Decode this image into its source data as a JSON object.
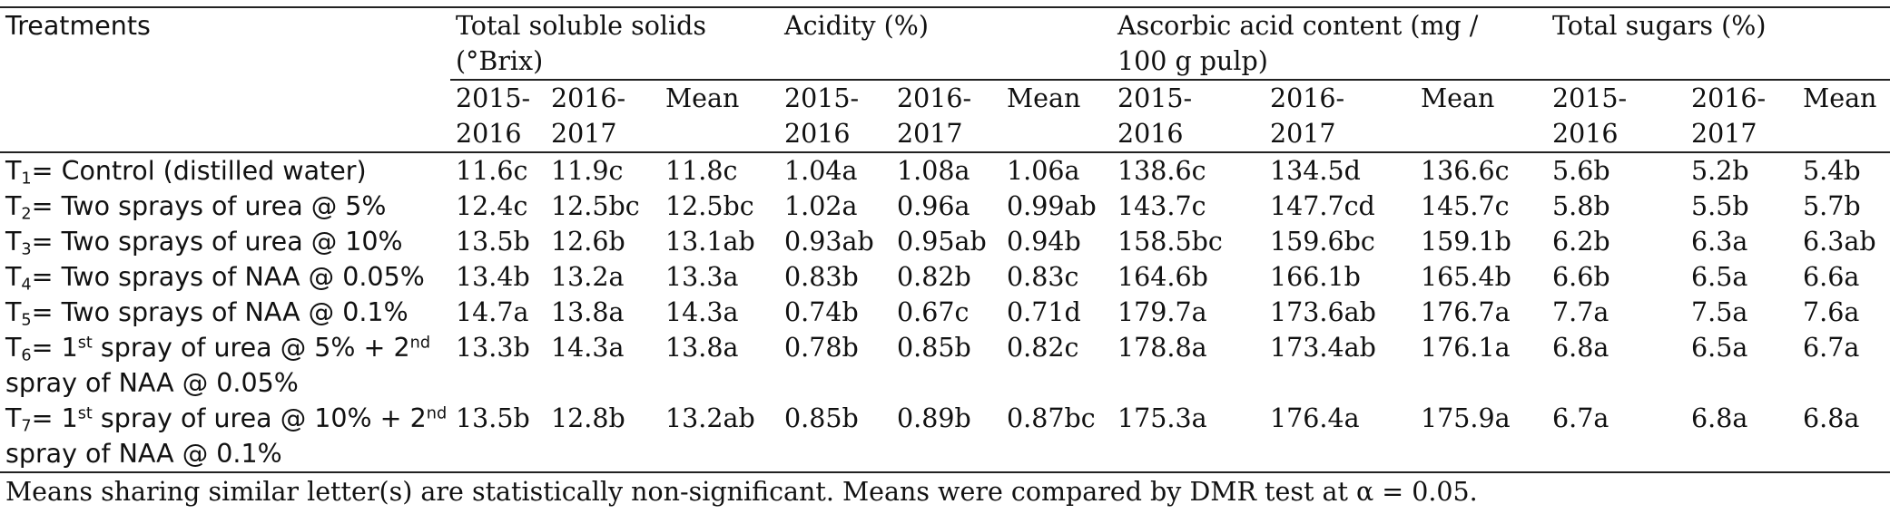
{
  "table": {
    "treatments_header": "Treatments",
    "groups": [
      {
        "label_line1": "Total soluble solids",
        "label_line2": "(°Brix)"
      },
      {
        "label_line1": "Acidity (%)",
        "label_line2": ""
      },
      {
        "label_line1": "Ascorbic acid content (mg /",
        "label_line2": "100 g pulp)"
      },
      {
        "label_line1": "Total sugars (%)",
        "label_line2": ""
      }
    ],
    "subheaders": [
      [
        "2015-",
        "2016"
      ],
      [
        "2016-",
        "2017"
      ],
      [
        "Mean",
        ""
      ],
      [
        "2015-",
        "2016"
      ],
      [
        "2016-",
        "2017"
      ],
      [
        "Mean",
        ""
      ],
      [
        "2015-",
        "2016"
      ],
      [
        "2016-",
        "2017"
      ],
      [
        "Mean",
        ""
      ],
      [
        "2015-",
        "2016"
      ],
      [
        "2016-",
        "2017"
      ],
      [
        "Mean",
        ""
      ]
    ],
    "rows": [
      {
        "t": "T",
        "sub": "1",
        "pre": "= Control (distilled water)",
        "sup1": "",
        "mid": "",
        "sup2": "",
        "post": "",
        "values": [
          "11.6c",
          "11.9c",
          "11.8c",
          "1.04a",
          "1.08a",
          "1.06a",
          "138.6c",
          "134.5d",
          "136.6c",
          "5.6b",
          "5.2b",
          "5.4b"
        ]
      },
      {
        "t": "T",
        "sub": "2",
        "pre": "= Two sprays of urea @ 5%",
        "sup1": "",
        "mid": "",
        "sup2": "",
        "post": "",
        "values": [
          "12.4c",
          "12.5bc",
          "12.5bc",
          "1.02a",
          "0.96a",
          "0.99ab",
          "143.7c",
          "147.7cd",
          "145.7c",
          "5.8b",
          "5.5b",
          "5.7b"
        ]
      },
      {
        "t": "T",
        "sub": "3",
        "pre": "= Two sprays of urea @ 10%",
        "sup1": "",
        "mid": "",
        "sup2": "",
        "post": "",
        "values": [
          "13.5b",
          "12.6b",
          "13.1ab",
          "0.93ab",
          "0.95ab",
          "0.94b",
          "158.5bc",
          "159.6bc",
          "159.1b",
          "6.2b",
          "6.3a",
          "6.3ab"
        ]
      },
      {
        "t": "T",
        "sub": "4",
        "pre": "= Two sprays of NAA @ 0.05%",
        "sup1": "",
        "mid": "",
        "sup2": "",
        "post": "",
        "values": [
          "13.4b",
          "13.2a",
          "13.3a",
          "0.83b",
          "0.82b",
          "0.83c",
          "164.6b",
          "166.1b",
          "165.4b",
          "6.6b",
          "6.5a",
          "6.6a"
        ]
      },
      {
        "t": "T",
        "sub": "5",
        "pre": "= Two sprays of NAA @ 0.1%",
        "sup1": "",
        "mid": "",
        "sup2": "",
        "post": "",
        "values": [
          "14.7a",
          "13.8a",
          "14.3a",
          "0.74b",
          "0.67c",
          "0.71d",
          "179.7a",
          "173.6ab",
          "176.7a",
          "7.7a",
          "7.5a",
          "7.6a"
        ]
      },
      {
        "t": "T",
        "sub": "6",
        "pre": "= 1",
        "sup1": "st",
        "mid": " spray of urea @ 5% + 2",
        "sup2": "nd",
        "post": " spray of NAA @ 0.05%",
        "values": [
          "13.3b",
          "14.3a",
          "13.8a",
          "0.78b",
          "0.85b",
          "0.82c",
          "178.8a",
          "173.4ab",
          "176.1a",
          "6.8a",
          "6.5a",
          "6.7a"
        ]
      },
      {
        "t": "T",
        "sub": "7",
        "pre": "= 1",
        "sup1": "st",
        "mid": " spray of urea @ 10% + 2",
        "sup2": "nd",
        "post": " spray of NAA @ 0.1%",
        "values": [
          "13.5b",
          "12.8b",
          "13.2ab",
          "0.85b",
          "0.89b",
          "0.87bc",
          "175.3a",
          "176.4a",
          "175.9a",
          "6.7a",
          "6.8a",
          "6.8a"
        ]
      }
    ]
  },
  "footnote": "Means sharing similar letter(s) are statistically non-significant. Means were compared by DMR test at α = 0.05."
}
